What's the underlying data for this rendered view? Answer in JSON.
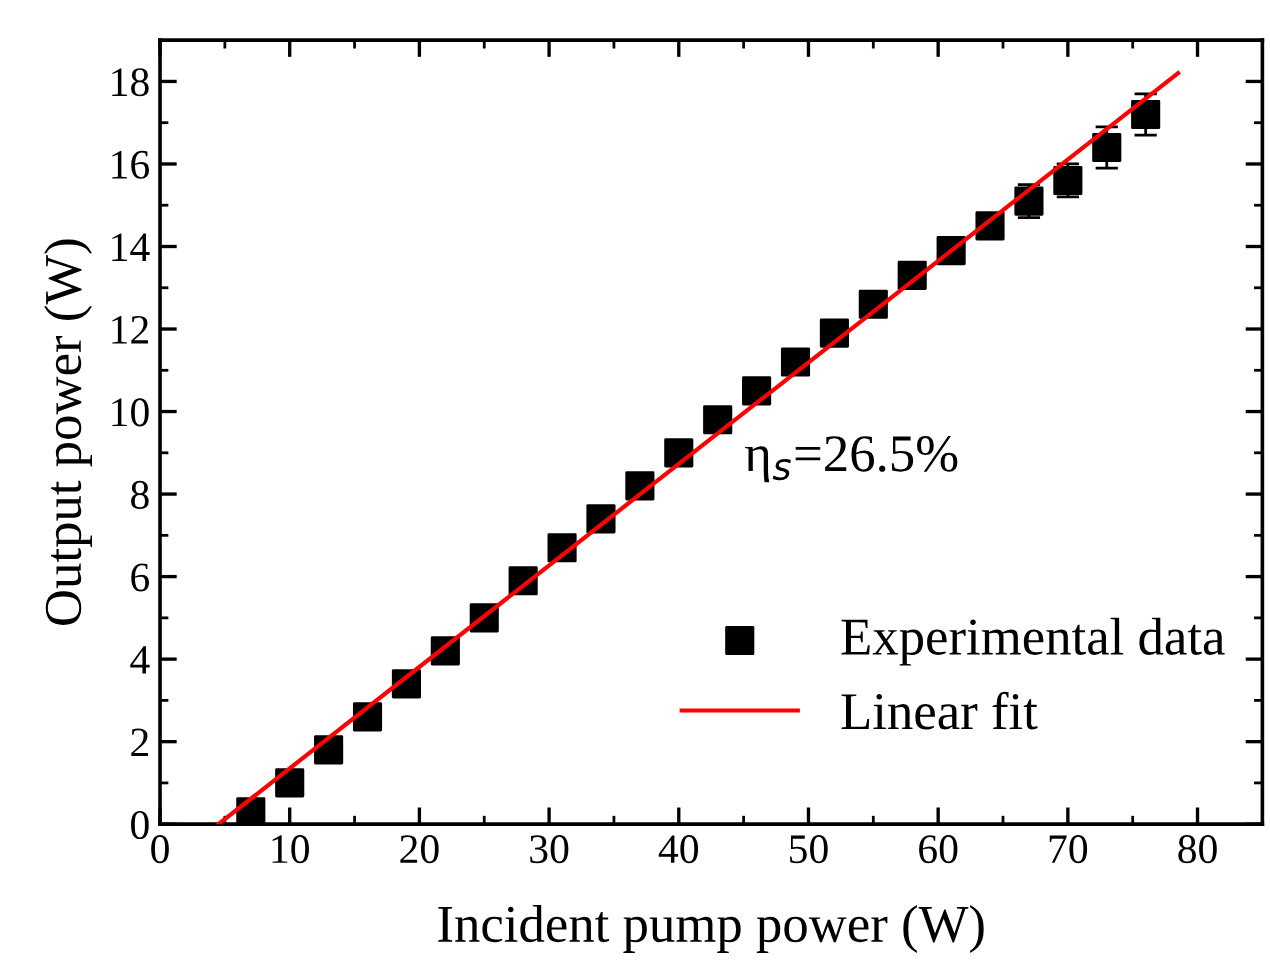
{
  "chart_data": {
    "type": "scatter",
    "xlabel": "Incident pump power (W)",
    "ylabel": "Output power (W)",
    "x": [
      7,
      10,
      13,
      16,
      19,
      22,
      25,
      28,
      31,
      34,
      37,
      40,
      43,
      46,
      49,
      52,
      55,
      58,
      61,
      64,
      67,
      70,
      73,
      76
    ],
    "series": [
      {
        "name": "Experimental data",
        "color": "#000000",
        "marker": "square",
        "values": [
          0.3,
          1.0,
          1.8,
          2.6,
          3.4,
          4.2,
          5.0,
          5.9,
          6.7,
          7.4,
          8.2,
          9.0,
          9.8,
          10.5,
          11.2,
          11.9,
          12.6,
          13.3,
          13.9,
          14.5,
          15.1,
          15.6,
          16.4,
          17.2
        ],
        "errors": [
          null,
          null,
          null,
          null,
          null,
          null,
          null,
          null,
          null,
          null,
          null,
          null,
          null,
          null,
          null,
          null,
          0.3,
          0.3,
          0.3,
          0.3,
          0.4,
          0.4,
          0.5,
          0.5
        ]
      },
      {
        "name": "Linear fit",
        "type": "line",
        "color": "#ff0000",
        "line_style": "solid",
        "marker": "none",
        "x": [
          4.5,
          78.5
        ],
        "values": [
          0,
          18.2
        ]
      }
    ],
    "annotations": [
      "η$_{s}$=26.5%"
    ],
    "xlim": [
      0,
      85
    ],
    "xticks": [
      0,
      10,
      20,
      30,
      40,
      50,
      60,
      70,
      80
    ],
    "ylim": [
      0,
      19
    ],
    "yticks": [
      0,
      2,
      4,
      6,
      8,
      10,
      12,
      14,
      16,
      18
    ],
    "grid": false,
    "legend": "bottom right"
  }
}
